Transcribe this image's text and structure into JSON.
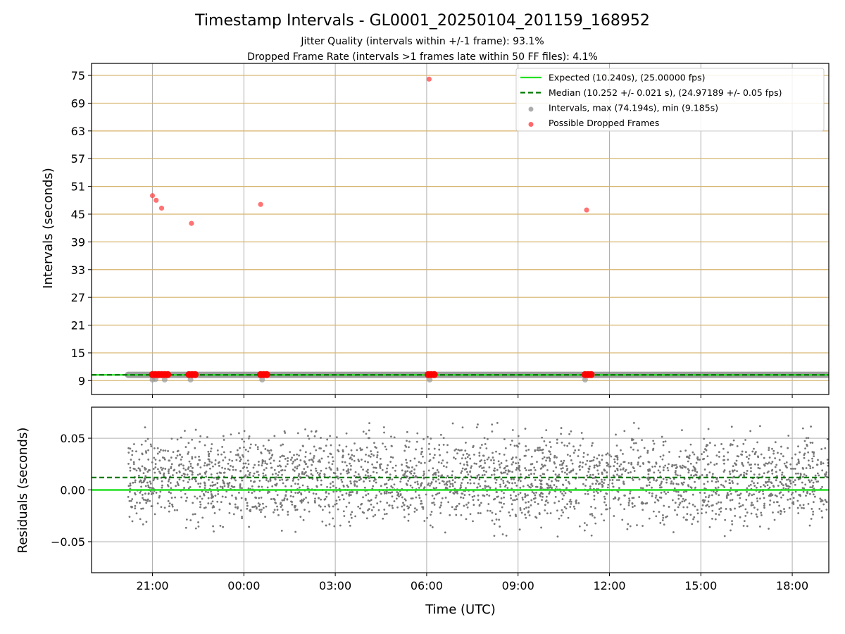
{
  "chart_data": [
    {
      "type": "scatter",
      "panel": "intervals",
      "title": "Timestamp Intervals - GL0001_20250104_201159_168952",
      "subtitle_lines": [
        "Jitter Quality (intervals within +/-1 frame): 93.1%",
        "Dropped Frame Rate (intervals >1 frames late within 50 FF files): 4.1%"
      ],
      "xlabel": "",
      "ylabel": "Intervals (seconds)",
      "x_unit": "hours since 00:00 UTC (negative = previous day)",
      "xlim": [
        -5.0,
        19.2
      ],
      "ylim": [
        6,
        77.6
      ],
      "y_ticks": [
        9,
        15,
        21,
        27,
        33,
        39,
        45,
        51,
        57,
        63,
        69,
        75
      ],
      "y_tick_labels": [
        "9",
        "15",
        "21",
        "27",
        "33",
        "39",
        "45",
        "51",
        "57",
        "63",
        "69",
        "75"
      ],
      "y_grid_color": "#d6b36b",
      "x_grid": true,
      "legend_position": "top-right",
      "legend": [
        {
          "label": "Expected (10.240s), (25.00000 fps)",
          "kind": "line",
          "color": "#22e022",
          "style": "solid"
        },
        {
          "label": "Median (10.252 +/- 0.021 s), (24.97189 +/- 0.05 fps)",
          "kind": "line",
          "color": "#007a00",
          "style": "dashed"
        },
        {
          "label": "Intervals, max (74.194s), min (9.185s)",
          "kind": "point",
          "color": "#999999"
        },
        {
          "label": "Possible Dropped Frames",
          "kind": "point",
          "color": "#ff4444"
        }
      ],
      "expected_y": 10.24,
      "median_y": 10.252,
      "intervals_band": {
        "x_start": -3.8,
        "x_end": 19.2,
        "y": 10.25,
        "color": "#808080"
      },
      "interval_low_points": [
        {
          "x": -3.0,
          "y": 9.2
        },
        {
          "x": -2.9,
          "y": 9.3
        },
        {
          "x": -2.6,
          "y": 9.2
        },
        {
          "x": -1.75,
          "y": 9.2
        },
        {
          "x": 0.6,
          "y": 9.2
        },
        {
          "x": 6.1,
          "y": 9.2
        },
        {
          "x": 11.2,
          "y": 9.2
        }
      ],
      "dropped_frames": [
        {
          "x": -3.0,
          "y": 49.0
        },
        {
          "x": -2.88,
          "y": 48.0
        },
        {
          "x": -2.7,
          "y": 46.3
        },
        {
          "x": -1.72,
          "y": 43.0
        },
        {
          "x": 0.55,
          "y": 47.1
        },
        {
          "x": 6.08,
          "y": 74.2
        },
        {
          "x": 11.25,
          "y": 45.9
        },
        {
          "x": -3.0,
          "y": 10.3
        },
        {
          "x": -2.9,
          "y": 10.3
        },
        {
          "x": -2.8,
          "y": 10.3
        },
        {
          "x": -2.7,
          "y": 10.3
        },
        {
          "x": -2.6,
          "y": 10.3
        },
        {
          "x": -2.5,
          "y": 10.3
        },
        {
          "x": -1.8,
          "y": 10.3
        },
        {
          "x": -1.7,
          "y": 10.3
        },
        {
          "x": -1.6,
          "y": 10.3
        },
        {
          "x": 0.55,
          "y": 10.3
        },
        {
          "x": 0.65,
          "y": 10.3
        },
        {
          "x": 0.75,
          "y": 10.3
        },
        {
          "x": 6.05,
          "y": 10.3
        },
        {
          "x": 6.15,
          "y": 10.3
        },
        {
          "x": 6.25,
          "y": 10.3
        },
        {
          "x": 11.2,
          "y": 10.3
        },
        {
          "x": 11.3,
          "y": 10.3
        },
        {
          "x": 11.4,
          "y": 10.3
        }
      ]
    },
    {
      "type": "scatter",
      "panel": "residuals",
      "xlabel": "Time (UTC)",
      "ylabel": "Residuals (seconds)",
      "xlim": [
        -5.0,
        19.2
      ],
      "ylim": [
        -0.08,
        0.08
      ],
      "y_ticks": [
        -0.05,
        0.0,
        0.05
      ],
      "y_tick_labels": [
        "−0.05",
        "0.00",
        "0.05"
      ],
      "x_ticks": [
        -3,
        0,
        3,
        6,
        9,
        12,
        15,
        18
      ],
      "x_tick_labels": [
        "21:00",
        "00:00",
        "03:00",
        "06:00",
        "09:00",
        "12:00",
        "15:00",
        "18:00"
      ],
      "grid": true,
      "expected_y": 0.0,
      "median_y": 0.012,
      "residuals": {
        "x_start": -3.8,
        "x_end": 19.2,
        "count": 2800,
        "center": 0.01,
        "spread": 0.028,
        "color": "#777777"
      }
    }
  ]
}
